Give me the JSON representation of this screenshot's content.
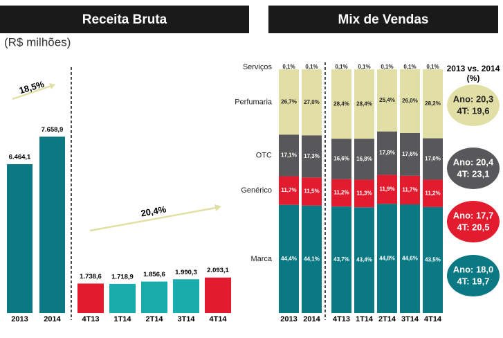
{
  "chart_data": [
    {
      "type": "bar",
      "title": "Receita Bruta",
      "subtitle": "(R$ milhões)",
      "categories": [
        "2013",
        "2014"
      ],
      "values": [
        6464.1,
        7658.9
      ],
      "value_labels": [
        "6.464,1",
        "7.658,9"
      ],
      "color": "#0b7984",
      "ylim": [
        0,
        8000
      ],
      "annotation": "18,5%"
    },
    {
      "type": "bar",
      "categories": [
        "4T13",
        "1T14",
        "2T14",
        "3T14",
        "4T14"
      ],
      "values": [
        1738.6,
        1718.9,
        1856.6,
        1990.3,
        2093.1
      ],
      "value_labels": [
        "1.738,6",
        "1.718,9",
        "1.856,6",
        "1.990,3",
        "2.093,1"
      ],
      "colors": [
        "#e31b2e",
        "#1aacad",
        "#1aacad",
        "#1aacad",
        "#e31b2e"
      ],
      "ylim": [
        0,
        8000
      ],
      "annotation": "20,4%"
    },
    {
      "type": "stacked_bar",
      "title": "Mix de Vendas",
      "categories": [
        "2013",
        "2014",
        "4T13",
        "1T14",
        "2T14",
        "3T14",
        "4T14"
      ],
      "ylim": [
        0,
        100
      ],
      "comparison_title": "2013 vs. 2014",
      "comparison_unit": "(%)",
      "series": [
        {
          "name": "Marca",
          "color": "#0b7984",
          "label_color": "#ffffff",
          "values": [
            44.4,
            44.1,
            43.7,
            43.4,
            44.8,
            44.6,
            43.5
          ],
          "value_labels": [
            "44,4%",
            "44,1%",
            "43,7%",
            "43,4%",
            "44,8%",
            "44,6%",
            "43,5%"
          ],
          "comparison": [
            "Ano: 18,0",
            "4T: 19,7"
          ]
        },
        {
          "name": "Genérico",
          "color": "#e31b2e",
          "label_color": "#ffffff",
          "values": [
            11.7,
            11.5,
            11.2,
            11.3,
            11.9,
            11.7,
            11.2
          ],
          "value_labels": [
            "11,7%",
            "11,5%",
            "11,2%",
            "11,3%",
            "11,9%",
            "11,7%",
            "11,2%"
          ],
          "comparison": [
            "Ano: 17,7",
            "4T: 20,5"
          ]
        },
        {
          "name": "OTC",
          "color": "#58585a",
          "label_color": "#ffffff",
          "values": [
            17.1,
            17.3,
            16.6,
            16.8,
            17.8,
            17.6,
            17.0
          ],
          "value_labels": [
            "17,1%",
            "17,3%",
            "16,6%",
            "16,8%",
            "17,8%",
            "17,6%",
            "17,0%"
          ],
          "comparison": [
            "Ano: 20,4",
            "4T: 23,1"
          ]
        },
        {
          "name": "Perfumaria",
          "color": "#e2dfa6",
          "label_color": "#222222",
          "values": [
            26.7,
            27.0,
            28.4,
            28.4,
            25.4,
            26.0,
            28.2
          ],
          "value_labels": [
            "26,7%",
            "27,0%",
            "28,4%",
            "28,4%",
            "25,4%",
            "26,0%",
            "28,2%"
          ],
          "comparison": [
            "Ano: 20,3",
            "4T: 19,6"
          ]
        },
        {
          "name": "Serviços",
          "color": "#e2dfa6",
          "label_color": "#222222",
          "values": [
            0.1,
            0.1,
            0.1,
            0.1,
            0.1,
            0.1,
            0.1
          ],
          "value_labels": [
            "0,1%",
            "0,1%",
            "0,1%",
            "0,1%",
            "0,1%",
            "0,1%",
            "0,1%"
          ]
        }
      ]
    }
  ]
}
